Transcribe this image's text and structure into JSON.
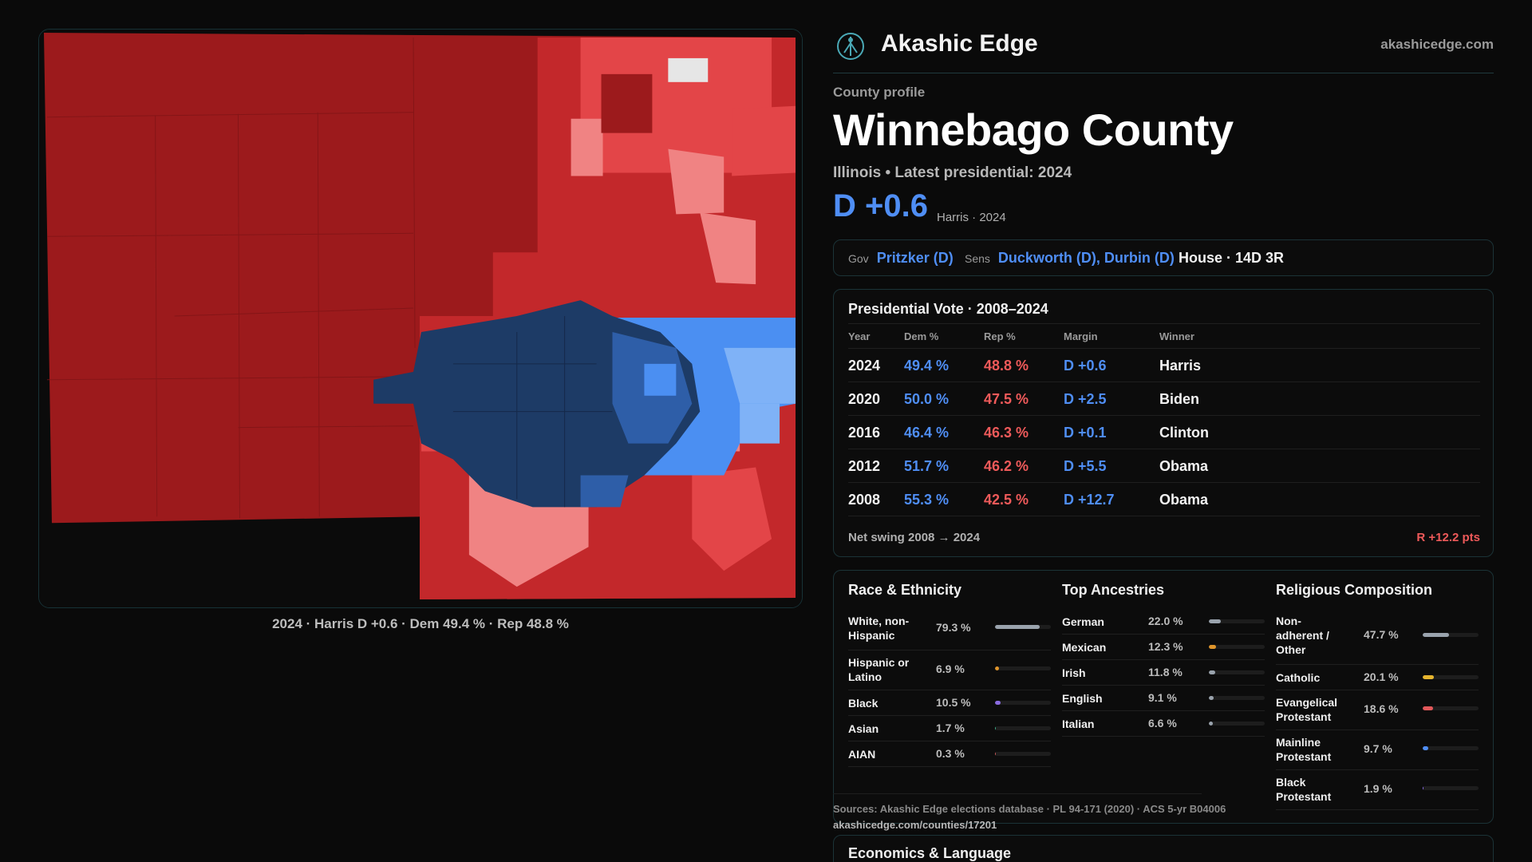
{
  "map": {
    "caption": "2024 · Harris D +0.6 · Dem 49.4 % · Rep 48.8 %",
    "colors": {
      "solid_rep": "#9c1a1c",
      "likely_rep": "#c3282b",
      "lean_rep": "#e34548",
      "tilt_rep": "#f08383",
      "safe_dem": "#1d3b66",
      "likely_dem": "#2e5ea8",
      "lean_dem": "#4b8ff2",
      "tilt_dem": "#7fb2f7",
      "no_data": "#e6e6e6"
    }
  },
  "brand": {
    "name": "Akashic Edge",
    "url": "akashicedge.com",
    "logo_icon": "tree-of-life-icon"
  },
  "profile": {
    "eyebrow": "County profile",
    "title": "Winnebago County",
    "subtitle": "Illinois • Latest presidential: 2024",
    "margin": "D +0.6",
    "margin_note": "Harris · 2024"
  },
  "officials": {
    "gov_label": "Gov",
    "gov_value": "Pritzker (D)",
    "sens_label": "Sens",
    "sens_value": "Duckworth (D), Durbin (D)",
    "house": "House · 14D 3R"
  },
  "presidential": {
    "title": "Presidential Vote · 2008–2024",
    "headers": [
      "Year",
      "Dem %",
      "Rep %",
      "Margin",
      "Winner"
    ],
    "rows": [
      {
        "year": "2024",
        "dem": "49.4 %",
        "rep": "48.8 %",
        "margin": "D +0.6",
        "winner": "Harris"
      },
      {
        "year": "2020",
        "dem": "50.0 %",
        "rep": "47.5 %",
        "margin": "D +2.5",
        "winner": "Biden"
      },
      {
        "year": "2016",
        "dem": "46.4 %",
        "rep": "46.3 %",
        "margin": "D +0.1",
        "winner": "Clinton"
      },
      {
        "year": "2012",
        "dem": "51.7 %",
        "rep": "46.2 %",
        "margin": "D +5.5",
        "winner": "Obama"
      },
      {
        "year": "2008",
        "dem": "55.3 %",
        "rep": "42.5 %",
        "margin": "D +12.7",
        "winner": "Obama"
      }
    ],
    "swing_label": "Net swing 2008 → 2024",
    "swing_value": "R +12.2 pts"
  },
  "race": {
    "title": "Race & Ethnicity",
    "items": [
      {
        "label": "White, non-Hispanic",
        "value": "79.3 %",
        "pct": 79.3,
        "color": "#9aa3ad"
      },
      {
        "label": "Hispanic or Latino",
        "value": "6.9 %",
        "pct": 6.9,
        "color": "#e0952b"
      },
      {
        "label": "Black",
        "value": "10.5 %",
        "pct": 10.5,
        "color": "#8a6be0"
      },
      {
        "label": "Asian",
        "value": "1.7 %",
        "pct": 1.7,
        "color": "#3fb08a"
      },
      {
        "label": "AIAN",
        "value": "0.3 %",
        "pct": 0.3,
        "color": "#c95a5a"
      }
    ]
  },
  "ancestry": {
    "title": "Top Ancestries",
    "items": [
      {
        "label": "German",
        "value": "22.0 %",
        "pct": 22.0,
        "color": "#9aa3ad"
      },
      {
        "label": "Mexican",
        "value": "12.3 %",
        "pct": 12.3,
        "color": "#e0952b"
      },
      {
        "label": "Irish",
        "value": "11.8 %",
        "pct": 11.8,
        "color": "#9aa3ad"
      },
      {
        "label": "English",
        "value": "9.1 %",
        "pct": 9.1,
        "color": "#9aa3ad"
      },
      {
        "label": "Italian",
        "value": "6.6 %",
        "pct": 6.6,
        "color": "#9aa3ad"
      }
    ]
  },
  "religion": {
    "title": "Religious Composition",
    "items": [
      {
        "label": "Non-adherent / Other",
        "value": "47.7 %",
        "pct": 47.7,
        "color": "#9aa3ad"
      },
      {
        "label": "Catholic",
        "value": "20.1 %",
        "pct": 20.1,
        "color": "#e6b52e"
      },
      {
        "label": "Evangelical Protestant",
        "value": "18.6 %",
        "pct": 18.6,
        "color": "#e3585a"
      },
      {
        "label": "Mainline Protestant",
        "value": "9.7 %",
        "pct": 9.7,
        "color": "#4f8ef5"
      },
      {
        "label": "Black Protestant",
        "value": "1.9 %",
        "pct": 1.9,
        "color": "#8a6be0"
      }
    ]
  },
  "sources": "Sources: Akashic Edge elections database · PL 94-171 (2020) · ACS 5-yr B04006",
  "source_url": "akashicedge.com/counties/17201",
  "economics": {
    "title": "Economics & Language"
  }
}
